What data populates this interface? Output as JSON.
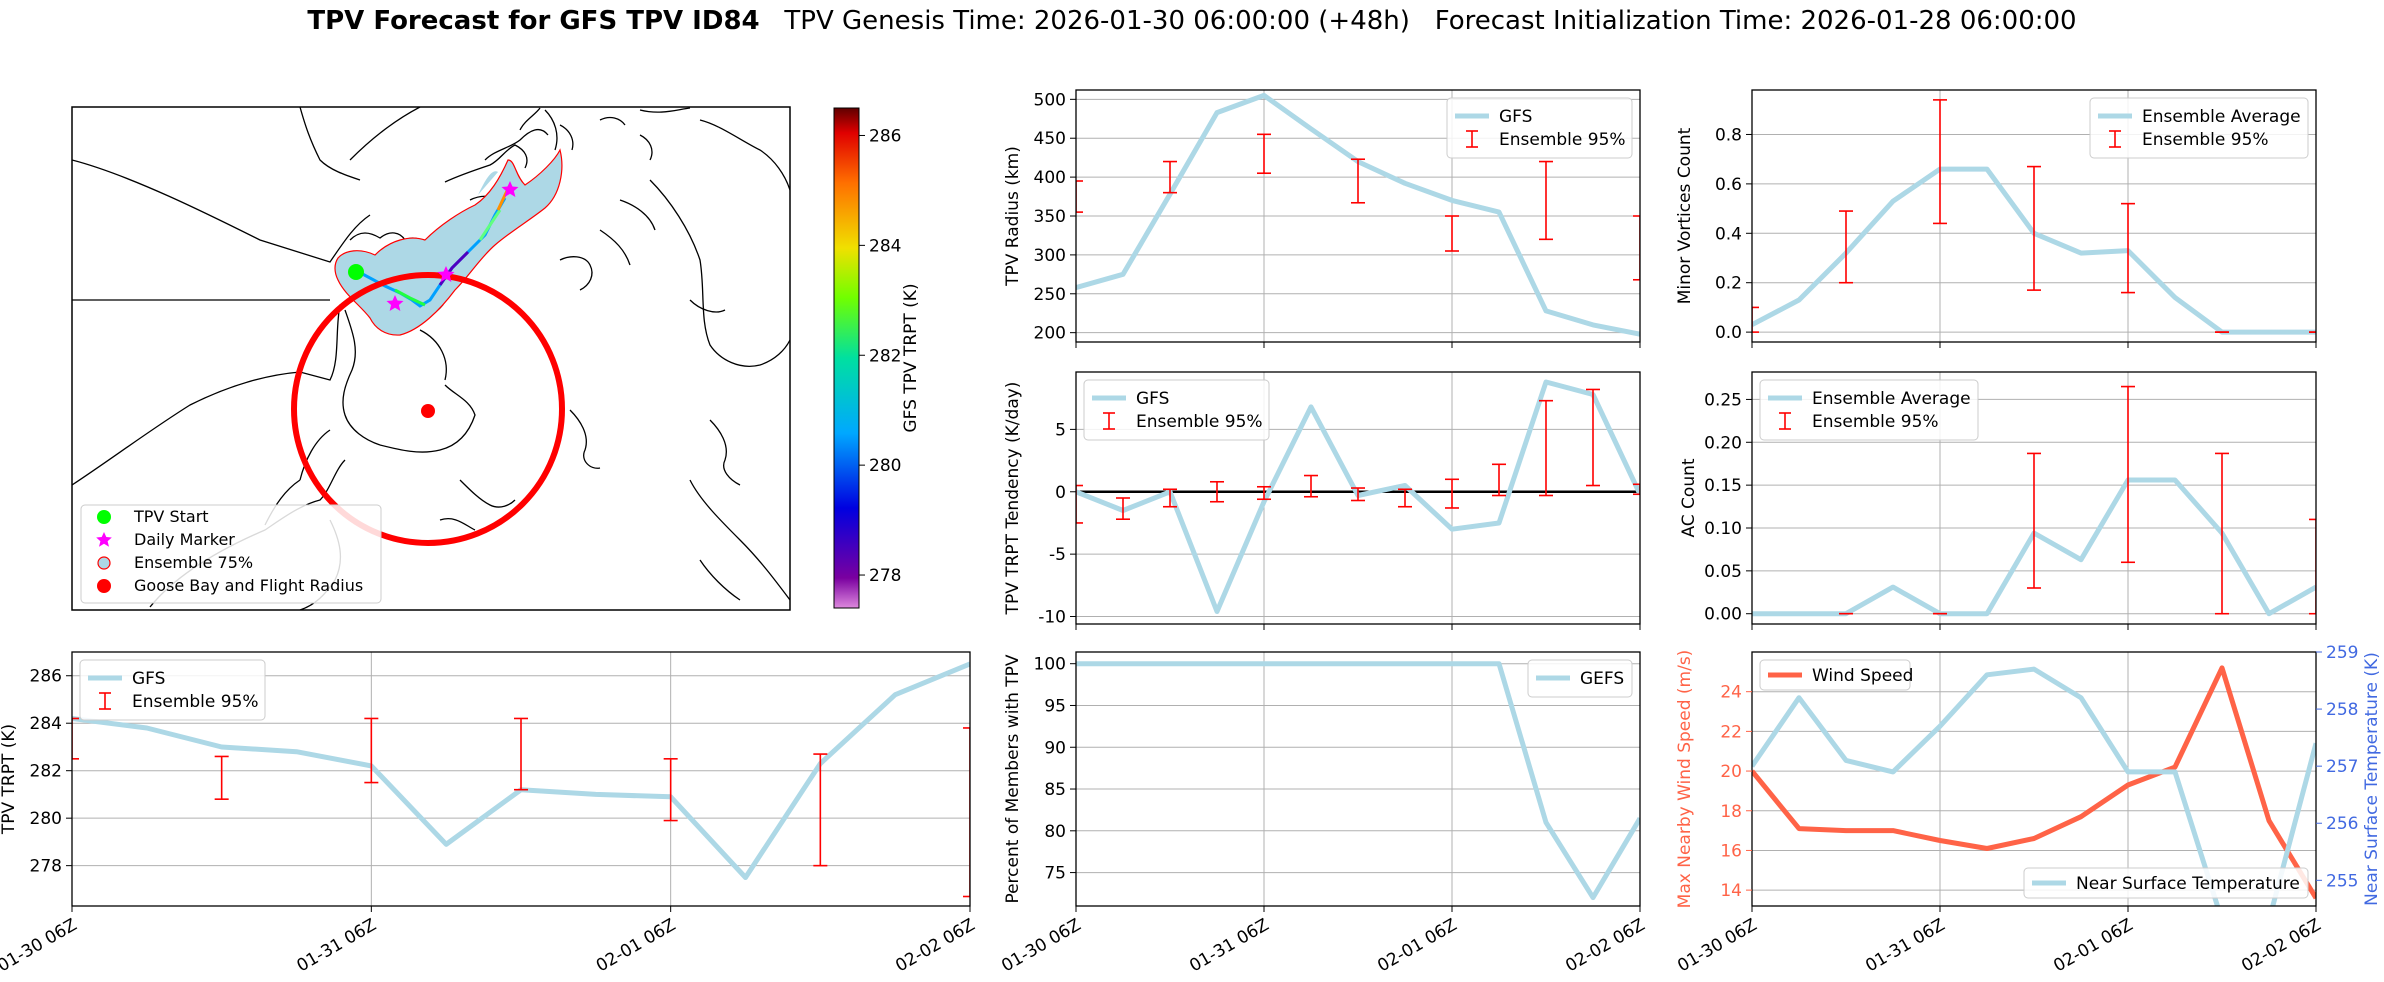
{
  "figure": {
    "title_bold": "TPV Forecast for GFS TPV ID84",
    "title_rest": "TPV Genesis Time: 2026-01-30 06:00:00 (+48h)   Forecast Initialization Time: 2026-01-28 06:00:00"
  },
  "colors": {
    "gfs_line": "#add8e6",
    "ensemble_err": "#ff0000",
    "wind": "#ff6347",
    "temp_axis": "#4169e1",
    "land": "#ffffff",
    "ensemble75_fill": "#add8e6",
    "tpv_start": "#00ff00",
    "daily_marker": "#ff00ff",
    "goose_bay": "#ff0000"
  },
  "map": {
    "colorbar_label": "GFS TPV TRPT (K)",
    "colorbar_ticks": [
      278,
      280,
      282,
      284,
      286
    ],
    "colorbar_range": [
      277.4,
      286.5
    ],
    "legend": [
      "TPV Start",
      "Daily Marker",
      "Ensemble 75%",
      "Goose Bay and Flight Radius"
    ]
  },
  "x_ticks": [
    "01-30 06Z",
    "01-31 06Z",
    "02-01 06Z",
    "02-02 06Z"
  ],
  "chart_data": [
    {
      "id": "radius",
      "type": "line",
      "ylabel": "TPV Radius (km)",
      "ylim": [
        188,
        512
      ],
      "yticks": [
        200,
        250,
        300,
        350,
        400,
        450,
        500
      ],
      "grid": true,
      "legend_placement": "top-right",
      "legend": [
        "GFS",
        "Ensemble 95%"
      ],
      "x_range": [
        0,
        72
      ],
      "series": [
        {
          "name": "GFS",
          "x": [
            0,
            6,
            12,
            18,
            24,
            30,
            36,
            42,
            48,
            54,
            60,
            66,
            72
          ],
          "values": [
            258,
            275,
            378,
            483,
            505,
            462,
            420,
            392,
            370,
            355,
            228,
            210,
            198
          ]
        }
      ],
      "errorbars": [
        {
          "x": 0,
          "low": 355,
          "high": 395
        },
        {
          "x": 12,
          "low": 380,
          "high": 420
        },
        {
          "x": 24,
          "low": 405,
          "high": 455
        },
        {
          "x": 36,
          "low": 367,
          "high": 423
        },
        {
          "x": 48,
          "low": 305,
          "high": 350
        },
        {
          "x": 60,
          "low": 320,
          "high": 420
        },
        {
          "x": 72,
          "low": 268,
          "high": 350
        }
      ]
    },
    {
      "id": "minor",
      "type": "line",
      "ylabel": "Minor Vortices Count",
      "ylim": [
        -0.04,
        0.98
      ],
      "yticks": [
        0.0,
        0.2,
        0.4,
        0.6,
        0.8
      ],
      "grid": true,
      "legend_placement": "top-right",
      "legend": [
        "Ensemble Average",
        "Ensemble 95%"
      ],
      "x_range": [
        0,
        72
      ],
      "series": [
        {
          "name": "Ensemble Average",
          "x": [
            0,
            6,
            12,
            18,
            24,
            30,
            36,
            42,
            48,
            54,
            60,
            66,
            72
          ],
          "values": [
            0.03,
            0.13,
            0.32,
            0.53,
            0.66,
            0.66,
            0.4,
            0.32,
            0.33,
            0.14,
            0.0,
            0.0,
            0.0
          ]
        }
      ],
      "errorbars": [
        {
          "x": 0,
          "low": 0.0,
          "high": 0.1
        },
        {
          "x": 12,
          "low": 0.2,
          "high": 0.49
        },
        {
          "x": 24,
          "low": 0.44,
          "high": 0.94
        },
        {
          "x": 36,
          "low": 0.17,
          "high": 0.67
        },
        {
          "x": 48,
          "low": 0.16,
          "high": 0.52
        },
        {
          "x": 60,
          "low": 0.0,
          "high": 0.0
        },
        {
          "x": 72,
          "low": 0.0,
          "high": 0.0
        }
      ]
    },
    {
      "id": "tendency",
      "type": "line",
      "ylabel": "TPV TRPT Tendency (K/day)",
      "ylim": [
        -10.6,
        9.6
      ],
      "yticks": [
        -10,
        -5,
        0,
        5
      ],
      "grid": true,
      "legend_placement": "top-left",
      "legend": [
        "GFS",
        "Ensemble 95%"
      ],
      "zero_line": true,
      "x_range": [
        0,
        72
      ],
      "series": [
        {
          "name": "GFS",
          "x": [
            0,
            6,
            12,
            18,
            24,
            30,
            36,
            42,
            48,
            54,
            60,
            66,
            72
          ],
          "values": [
            0,
            -1.5,
            0,
            -9.6,
            -0.8,
            6.8,
            -0.3,
            0.5,
            -3.0,
            -2.5,
            8.8,
            7.8,
            -0.2
          ]
        }
      ],
      "errorbars": [
        {
          "x": 0,
          "low": -2.5,
          "high": 0.5
        },
        {
          "x": 6,
          "low": -2.2,
          "high": -0.5
        },
        {
          "x": 12,
          "low": -1.2,
          "high": 0.2
        },
        {
          "x": 18,
          "low": -0.8,
          "high": 0.8
        },
        {
          "x": 24,
          "low": -0.6,
          "high": 0.4
        },
        {
          "x": 30,
          "low": -0.4,
          "high": 1.3
        },
        {
          "x": 36,
          "low": -0.7,
          "high": 0.3
        },
        {
          "x": 42,
          "low": -1.2,
          "high": 0.2
        },
        {
          "x": 48,
          "low": -1.3,
          "high": 1.0
        },
        {
          "x": 54,
          "low": -0.3,
          "high": 2.2
        },
        {
          "x": 60,
          "low": -0.3,
          "high": 7.3
        },
        {
          "x": 66,
          "low": 0.5,
          "high": 8.2
        },
        {
          "x": 72,
          "low": -0.2,
          "high": 0.6
        }
      ]
    },
    {
      "id": "ac",
      "type": "line",
      "ylabel": "AC Count",
      "ylim": [
        -0.012,
        0.282
      ],
      "yticks": [
        0.0,
        0.05,
        0.1,
        0.15,
        0.2,
        0.25
      ],
      "grid": true,
      "legend_placement": "top-left",
      "legend": [
        "Ensemble Average",
        "Ensemble 95%"
      ],
      "x_range": [
        0,
        72
      ],
      "series": [
        {
          "name": "Ensemble Average",
          "x": [
            0,
            6,
            12,
            18,
            24,
            30,
            36,
            42,
            48,
            54,
            60,
            66,
            72
          ],
          "values": [
            0,
            0,
            0,
            0.031,
            0,
            0,
            0.094,
            0.063,
            0.156,
            0.156,
            0.094,
            0,
            0.031
          ]
        }
      ],
      "errorbars": [
        {
          "x": 12,
          "low": 0,
          "high": 0
        },
        {
          "x": 24,
          "low": 0,
          "high": 0
        },
        {
          "x": 36,
          "low": 0.03,
          "high": 0.187
        },
        {
          "x": 48,
          "low": 0.06,
          "high": 0.265
        },
        {
          "x": 60,
          "low": 0,
          "high": 0.187
        },
        {
          "x": 72,
          "low": 0,
          "high": 0.11
        }
      ]
    },
    {
      "id": "trpt",
      "type": "line",
      "ylabel": "TPV TRPT (K)",
      "ylim": [
        276.3,
        287.0
      ],
      "yticks": [
        278,
        280,
        282,
        284,
        286
      ],
      "grid": true,
      "legend_placement": "top-left",
      "legend": [
        "GFS",
        "Ensemble 95%"
      ],
      "x_range": [
        0,
        72
      ],
      "series": [
        {
          "name": "GFS",
          "x": [
            0,
            6,
            12,
            18,
            24,
            30,
            36,
            42,
            48,
            54,
            60,
            66,
            72
          ],
          "values": [
            284.2,
            283.8,
            283.0,
            282.8,
            282.2,
            278.9,
            281.2,
            281.0,
            280.9,
            277.5,
            282.3,
            285.2,
            286.5
          ]
        }
      ],
      "errorbars": [
        {
          "x": 0,
          "low": 282.5,
          "high": 284.2
        },
        {
          "x": 12,
          "low": 280.8,
          "high": 282.6
        },
        {
          "x": 24,
          "low": 281.5,
          "high": 284.2
        },
        {
          "x": 36,
          "low": 281.2,
          "high": 284.2
        },
        {
          "x": 48,
          "low": 279.9,
          "high": 282.5
        },
        {
          "x": 60,
          "low": 278.0,
          "high": 282.7
        },
        {
          "x": 72,
          "low": 276.7,
          "high": 283.8
        }
      ]
    },
    {
      "id": "percent",
      "type": "line",
      "ylabel": "Percent of Members with TPV",
      "ylim": [
        71,
        101.4
      ],
      "yticks": [
        75,
        80,
        85,
        90,
        95,
        100
      ],
      "grid": true,
      "legend_placement": "top-right",
      "legend": [
        "GEFS"
      ],
      "x_range": [
        0,
        72
      ],
      "series": [
        {
          "name": "GEFS",
          "x": [
            0,
            6,
            12,
            18,
            24,
            30,
            36,
            42,
            48,
            54,
            60,
            66,
            72
          ],
          "values": [
            100,
            100,
            100,
            100,
            100,
            100,
            100,
            100,
            100,
            100,
            81,
            72,
            81.5
          ]
        }
      ]
    },
    {
      "id": "wind",
      "type": "line",
      "ylabel": "Max Nearby Wind Speed (m/s)",
      "ylabel_right": "Near Surface Temperature (K)",
      "ylim": [
        13.2,
        26.0
      ],
      "yticks": [
        14,
        16,
        18,
        20,
        22,
        24
      ],
      "ylim_right": [
        254.55,
        259.0
      ],
      "yticks_right": [
        255,
        256,
        257,
        258,
        259
      ],
      "grid": true,
      "legend": [
        "Wind Speed",
        "Near Surface Temperature"
      ],
      "legend_placement": "top-left / bottom-right",
      "x_range": [
        0,
        72
      ],
      "series": [
        {
          "name": "Wind Speed",
          "axis": "left",
          "x": [
            0,
            6,
            12,
            18,
            24,
            30,
            36,
            42,
            48,
            54,
            60,
            66,
            72
          ],
          "values": [
            20.0,
            17.1,
            17.0,
            17.0,
            16.5,
            16.1,
            16.6,
            17.7,
            19.3,
            20.2,
            25.2,
            17.5,
            13.6
          ]
        },
        {
          "name": "Near Surface Temperature",
          "axis": "right",
          "x": [
            0,
            6,
            12,
            18,
            24,
            30,
            36,
            42,
            48,
            54,
            60,
            66,
            72
          ],
          "values": [
            257.0,
            258.2,
            257.1,
            256.9,
            257.7,
            258.6,
            258.7,
            258.2,
            256.9,
            256.9,
            254.3,
            254.3,
            257.4
          ]
        }
      ]
    }
  ]
}
